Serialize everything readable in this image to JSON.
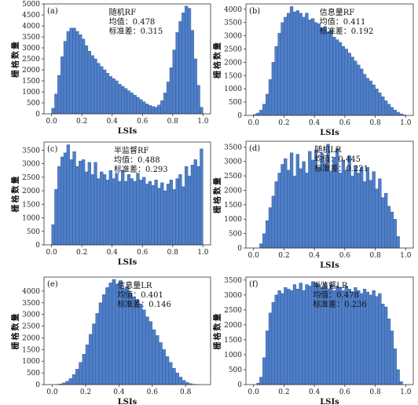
{
  "chart_data": [
    {
      "type": "bar",
      "panel_label": "(a)",
      "xlabel": "LSIs",
      "ylabel": "栅格数量",
      "annotation": [
        "随机RF",
        "均值：0.478",
        "标准差：0.315"
      ],
      "xlim": [
        -0.05,
        1.05
      ],
      "ylim": [
        0,
        5000
      ],
      "xticks": [
        0.0,
        0.2,
        0.4,
        0.6,
        0.8,
        1.0
      ],
      "yticks": [
        0,
        500,
        1000,
        1500,
        2000,
        2500,
        3000,
        3500,
        4000,
        4500,
        5000
      ],
      "bin_width": 0.02,
      "x": [
        0.01,
        0.03,
        0.05,
        0.07,
        0.09,
        0.11,
        0.13,
        0.15,
        0.17,
        0.19,
        0.21,
        0.23,
        0.25,
        0.27,
        0.29,
        0.31,
        0.33,
        0.35,
        0.37,
        0.39,
        0.41,
        0.43,
        0.45,
        0.47,
        0.49,
        0.51,
        0.53,
        0.55,
        0.57,
        0.59,
        0.61,
        0.63,
        0.65,
        0.67,
        0.69,
        0.71,
        0.73,
        0.75,
        0.77,
        0.79,
        0.81,
        0.83,
        0.85,
        0.87,
        0.89,
        0.91,
        0.93,
        0.95,
        0.97,
        0.99
      ],
      "values": [
        250,
        900,
        1750,
        2600,
        3300,
        3750,
        3900,
        3900,
        3750,
        3600,
        3400,
        3100,
        2850,
        2650,
        2500,
        2300,
        2150,
        2000,
        1850,
        1700,
        1600,
        1500,
        1350,
        1250,
        1150,
        1050,
        950,
        850,
        750,
        650,
        550,
        450,
        380,
        330,
        300,
        400,
        600,
        950,
        1450,
        2100,
        2900,
        3700,
        4200,
        4600,
        4900,
        4800,
        3800,
        2500,
        1300,
        300
      ]
    },
    {
      "type": "bar",
      "panel_label": "(b)",
      "xlabel": "LSIs",
      "ylabel": "栅格数量",
      "annotation": [
        "信息量RF",
        "均值：0.411",
        "标准差：0.192"
      ],
      "xlim": [
        -0.05,
        1.05
      ],
      "ylim": [
        0,
        4200
      ],
      "xticks": [
        0.0,
        0.2,
        0.4,
        0.6,
        0.8,
        1.0
      ],
      "yticks": [
        0,
        500,
        1000,
        1500,
        2000,
        2500,
        3000,
        3500,
        4000
      ],
      "bin_width": 0.02,
      "x": [
        0.01,
        0.03,
        0.05,
        0.07,
        0.09,
        0.11,
        0.13,
        0.15,
        0.17,
        0.19,
        0.21,
        0.23,
        0.25,
        0.27,
        0.29,
        0.31,
        0.33,
        0.35,
        0.37,
        0.39,
        0.41,
        0.43,
        0.45,
        0.47,
        0.49,
        0.51,
        0.53,
        0.55,
        0.57,
        0.59,
        0.61,
        0.63,
        0.65,
        0.67,
        0.69,
        0.71,
        0.73,
        0.75,
        0.77,
        0.79,
        0.81,
        0.83,
        0.85,
        0.87,
        0.89,
        0.91,
        0.93,
        0.95,
        0.97,
        0.99
      ],
      "values": [
        40,
        90,
        200,
        420,
        800,
        1350,
        2000,
        2600,
        3100,
        3500,
        3700,
        3850,
        4100,
        3900,
        3950,
        3850,
        3700,
        3850,
        3600,
        3650,
        3500,
        3450,
        3300,
        3350,
        3150,
        3200,
        2950,
        2850,
        2750,
        2600,
        2500,
        2350,
        2200,
        2050,
        1900,
        1750,
        1550,
        1400,
        1300,
        1150,
        1000,
        850,
        700,
        550,
        420,
        300,
        200,
        120,
        60,
        25
      ]
    },
    {
      "type": "bar",
      "panel_label": "(c)",
      "xlabel": "LSIs",
      "ylabel": "栅格数量",
      "annotation": [
        "半监督RF",
        "均值：0.488",
        "标准差：0.293"
      ],
      "xlim": [
        -0.05,
        1.05
      ],
      "ylim": [
        0,
        3800
      ],
      "xticks": [
        0.0,
        0.2,
        0.4,
        0.6,
        0.8,
        1.0
      ],
      "yticks": [
        0,
        500,
        1000,
        1500,
        2000,
        2500,
        3000,
        3500
      ],
      "bin_width": 0.02,
      "x": [
        0.01,
        0.03,
        0.05,
        0.07,
        0.09,
        0.11,
        0.13,
        0.15,
        0.17,
        0.19,
        0.21,
        0.23,
        0.25,
        0.27,
        0.29,
        0.31,
        0.33,
        0.35,
        0.37,
        0.39,
        0.41,
        0.43,
        0.45,
        0.47,
        0.49,
        0.51,
        0.53,
        0.55,
        0.57,
        0.59,
        0.61,
        0.63,
        0.65,
        0.67,
        0.69,
        0.71,
        0.73,
        0.75,
        0.77,
        0.79,
        0.81,
        0.83,
        0.85,
        0.87,
        0.89,
        0.91,
        0.93,
        0.95,
        0.97,
        0.99
      ],
      "values": [
        750,
        2050,
        2900,
        3250,
        3400,
        3700,
        3150,
        3450,
        2900,
        3100,
        3150,
        2700,
        3050,
        2600,
        3050,
        2450,
        2700,
        2600,
        2400,
        2750,
        2450,
        2650,
        2350,
        2750,
        2350,
        2600,
        2450,
        2350,
        2650,
        2400,
        2500,
        2250,
        2350,
        2200,
        2400,
        2100,
        2300,
        2000,
        2250,
        2400,
        2050,
        2450,
        2600,
        2150,
        2900,
        2550,
        2950,
        3150,
        2900,
        3550
      ]
    },
    {
      "type": "bar",
      "panel_label": "(d)",
      "xlabel": "LSIs",
      "ylabel": "栅格数量",
      "annotation": [
        "随机LR",
        "均值：0.445",
        "标准差：0.221"
      ],
      "xlim": [
        -0.05,
        1.05
      ],
      "ylim": [
        0,
        3700
      ],
      "xticks": [
        0.0,
        0.2,
        0.4,
        0.6,
        0.8,
        1.0
      ],
      "yticks": [
        0,
        500,
        1000,
        1500,
        2000,
        2500,
        3000,
        3500
      ],
      "bin_width": 0.02,
      "x": [
        0.01,
        0.03,
        0.05,
        0.07,
        0.09,
        0.11,
        0.13,
        0.15,
        0.17,
        0.19,
        0.21,
        0.23,
        0.25,
        0.27,
        0.29,
        0.31,
        0.33,
        0.35,
        0.37,
        0.39,
        0.41,
        0.43,
        0.45,
        0.47,
        0.49,
        0.51,
        0.53,
        0.55,
        0.57,
        0.59,
        0.61,
        0.63,
        0.65,
        0.67,
        0.69,
        0.71,
        0.73,
        0.75,
        0.77,
        0.79,
        0.81,
        0.83,
        0.85,
        0.87,
        0.89,
        0.91,
        0.93,
        0.95,
        0.97,
        0.99
      ],
      "values": [
        0,
        0,
        150,
        500,
        950,
        1400,
        1800,
        2300,
        2600,
        2900,
        3100,
        2700,
        3300,
        2500,
        3250,
        2750,
        3000,
        2600,
        3350,
        3050,
        3400,
        2800,
        3300,
        2950,
        3600,
        2650,
        3150,
        3450,
        2600,
        3050,
        2700,
        3200,
        2500,
        2850,
        2600,
        2800,
        2300,
        2800,
        2350,
        2650,
        2050,
        2400,
        1750,
        1900,
        1450,
        1250,
        1000,
        400,
        0,
        0
      ]
    },
    {
      "type": "bar",
      "panel_label": "(e)",
      "xlabel": "LSIs",
      "ylabel": "栅格数量",
      "annotation": [
        "信息量LR",
        "均值：0.401",
        "标准差：0.146"
      ],
      "xlim": [
        -0.05,
        0.95
      ],
      "ylim": [
        0,
        4600
      ],
      "xticks": [
        0.0,
        0.2,
        0.4,
        0.6,
        0.8
      ],
      "yticks": [
        0,
        500,
        1000,
        1500,
        2000,
        2500,
        3000,
        3500,
        4000
      ],
      "bin_width": 0.02,
      "x": [
        0.01,
        0.03,
        0.05,
        0.07,
        0.09,
        0.11,
        0.13,
        0.15,
        0.17,
        0.19,
        0.21,
        0.23,
        0.25,
        0.27,
        0.29,
        0.31,
        0.33,
        0.35,
        0.37,
        0.39,
        0.41,
        0.43,
        0.45,
        0.47,
        0.49,
        0.51,
        0.53,
        0.55,
        0.57,
        0.59,
        0.61,
        0.63,
        0.65,
        0.67,
        0.69,
        0.71,
        0.73,
        0.75,
        0.77,
        0.79,
        0.81,
        0.83,
        0.85,
        0.87,
        0.89
      ],
      "values": [
        0,
        10,
        30,
        70,
        140,
        260,
        430,
        660,
        950,
        1300,
        1700,
        2150,
        2600,
        3050,
        3500,
        3850,
        4150,
        4350,
        4500,
        4300,
        4450,
        4100,
        4200,
        3900,
        3750,
        3650,
        3450,
        3200,
        2900,
        2700,
        2350,
        2100,
        1800,
        1500,
        1200,
        950,
        700,
        500,
        320,
        180,
        90,
        40,
        15,
        5,
        0
      ]
    },
    {
      "type": "bar",
      "panel_label": "(f)",
      "xlabel": "LSIs",
      "ylabel": "栅格数量",
      "annotation": [
        "半监督LR",
        "均值：0.478",
        "标准差：0.236"
      ],
      "xlim": [
        -0.05,
        1.05
      ],
      "ylim": [
        0,
        3600
      ],
      "xticks": [
        0.0,
        0.2,
        0.4,
        0.6,
        0.8,
        1.0
      ],
      "yticks": [
        0,
        500,
        1000,
        1500,
        2000,
        2500,
        3000,
        3500
      ],
      "bin_width": 0.02,
      "x": [
        0.01,
        0.03,
        0.05,
        0.07,
        0.09,
        0.11,
        0.13,
        0.15,
        0.17,
        0.19,
        0.21,
        0.23,
        0.25,
        0.27,
        0.29,
        0.31,
        0.33,
        0.35,
        0.37,
        0.39,
        0.41,
        0.43,
        0.45,
        0.47,
        0.49,
        0.51,
        0.53,
        0.55,
        0.57,
        0.59,
        0.61,
        0.63,
        0.65,
        0.67,
        0.69,
        0.71,
        0.73,
        0.75,
        0.77,
        0.79,
        0.81,
        0.83,
        0.85,
        0.87,
        0.89,
        0.91,
        0.93,
        0.95,
        0.97,
        0.99
      ],
      "values": [
        0,
        50,
        250,
        900,
        1800,
        2400,
        2750,
        3000,
        3150,
        3050,
        3250,
        3200,
        3150,
        3350,
        3200,
        3400,
        3150,
        3350,
        3300,
        3450,
        3400,
        3350,
        3250,
        3400,
        3200,
        3350,
        3150,
        3300,
        3250,
        3150,
        3300,
        3200,
        3100,
        3250,
        3150,
        3050,
        3200,
        3100,
        3000,
        3150,
        2950,
        3050,
        2700,
        2600,
        2200,
        1800,
        1200,
        500,
        100,
        0
      ]
    }
  ]
}
